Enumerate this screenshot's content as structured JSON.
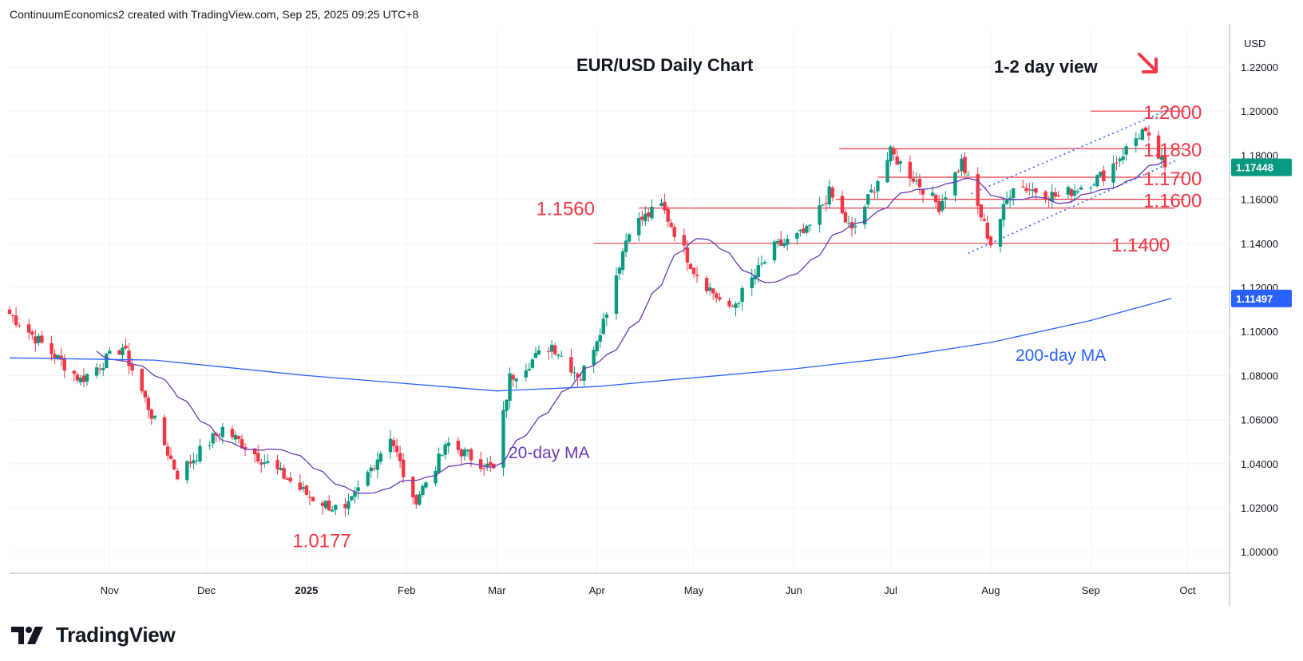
{
  "header": {
    "credit": "ContinuumEconomics2 created with TradingView.com, Sep 25, 2025 09:25 UTC+8"
  },
  "brand": {
    "name": "TradingView"
  },
  "chart_data": {
    "type": "candlestick",
    "title": "EUR/USD Daily Chart",
    "subtitle": "1-2 day view",
    "currency": "USD",
    "ylim": [
      1.0,
      1.23
    ],
    "y_ticks": [
      "1.22000",
      "1.20000",
      "1.18000",
      "1.16000",
      "1.14000",
      "1.12000",
      "1.10000",
      "1.08000",
      "1.06000",
      "1.04000",
      "1.02000",
      "1.00000"
    ],
    "x_labels": [
      "Nov",
      "Dec",
      "2025",
      "Feb",
      "Mar",
      "Apr",
      "May",
      "Jun",
      "Jul",
      "Aug",
      "Sep",
      "Oct"
    ],
    "x_range": [
      "2024-10-01",
      "2025-10-14"
    ],
    "last_price": {
      "label": "1.17448",
      "value": 1.17448,
      "color": "#089981"
    },
    "ma_price": {
      "label": "1.11497",
      "value": 1.11497,
      "color": "#2962ff"
    },
    "candle_colors": {
      "up": "#089981",
      "down": "#f23645"
    },
    "level_color": "#f23645",
    "levels": [
      {
        "label": "1.2000",
        "value": 1.2
      },
      {
        "label": "1.1830",
        "value": 1.183
      },
      {
        "label": "1.1700",
        "value": 1.17
      },
      {
        "label": "1.1600",
        "value": 1.16
      },
      {
        "label": "1.1560",
        "value": 1.156
      },
      {
        "label": "1.1400",
        "value": 1.14
      },
      {
        "label": "1.0177",
        "value": 1.0177
      }
    ],
    "ma_labels": {
      "ma20": "20-day MA",
      "ma200": "200-day MA"
    },
    "ma20_color": "#673ab7",
    "ma200_color": "#2962ff",
    "direction_arrow": "arrow-down-right",
    "key_points": [
      {
        "date": "2024-10-01",
        "close": 1.108
      },
      {
        "date": "2024-10-23",
        "close": 1.078
      },
      {
        "date": "2024-11-05",
        "close": 1.093
      },
      {
        "date": "2024-11-22",
        "close": 1.035
      },
      {
        "date": "2024-12-06",
        "close": 1.056
      },
      {
        "date": "2024-12-20",
        "close": 1.04
      },
      {
        "date": "2025-01-02",
        "close": 1.025
      },
      {
        "date": "2025-01-13",
        "close": 1.0177
      },
      {
        "date": "2025-01-27",
        "close": 1.053
      },
      {
        "date": "2025-02-03",
        "close": 1.022
      },
      {
        "date": "2025-02-14",
        "close": 1.049
      },
      {
        "date": "2025-02-28",
        "close": 1.037
      },
      {
        "date": "2025-03-05",
        "close": 1.079
      },
      {
        "date": "2025-03-18",
        "close": 1.094
      },
      {
        "date": "2025-03-27",
        "close": 1.079
      },
      {
        "date": "2025-04-03",
        "close": 1.105
      },
      {
        "date": "2025-04-11",
        "close": 1.147
      },
      {
        "date": "2025-04-21",
        "close": 1.157
      },
      {
        "date": "2025-05-01",
        "close": 1.128
      },
      {
        "date": "2025-05-12",
        "close": 1.109
      },
      {
        "date": "2025-05-26",
        "close": 1.138
      },
      {
        "date": "2025-06-05",
        "close": 1.145
      },
      {
        "date": "2025-06-12",
        "close": 1.163
      },
      {
        "date": "2025-06-19",
        "close": 1.145
      },
      {
        "date": "2025-07-01",
        "close": 1.181
      },
      {
        "date": "2025-07-16",
        "close": 1.157
      },
      {
        "date": "2025-07-23",
        "close": 1.177
      },
      {
        "date": "2025-08-01",
        "close": 1.14
      },
      {
        "date": "2025-08-08",
        "close": 1.167
      },
      {
        "date": "2025-08-22",
        "close": 1.161
      },
      {
        "date": "2025-09-05",
        "close": 1.171
      },
      {
        "date": "2025-09-17",
        "close": 1.191
      },
      {
        "date": "2025-09-24",
        "close": 1.17448
      }
    ],
    "ma200_points": [
      {
        "date": "2024-10-01",
        "value": 1.088
      },
      {
        "date": "2024-11-15",
        "value": 1.087
      },
      {
        "date": "2025-01-01",
        "value": 1.08
      },
      {
        "date": "2025-03-01",
        "value": 1.073
      },
      {
        "date": "2025-04-01",
        "value": 1.075
      },
      {
        "date": "2025-05-01",
        "value": 1.079
      },
      {
        "date": "2025-06-01",
        "value": 1.083
      },
      {
        "date": "2025-07-01",
        "value": 1.088
      },
      {
        "date": "2025-08-01",
        "value": 1.095
      },
      {
        "date": "2025-09-01",
        "value": 1.105
      },
      {
        "date": "2025-09-26",
        "value": 1.115
      }
    ]
  }
}
